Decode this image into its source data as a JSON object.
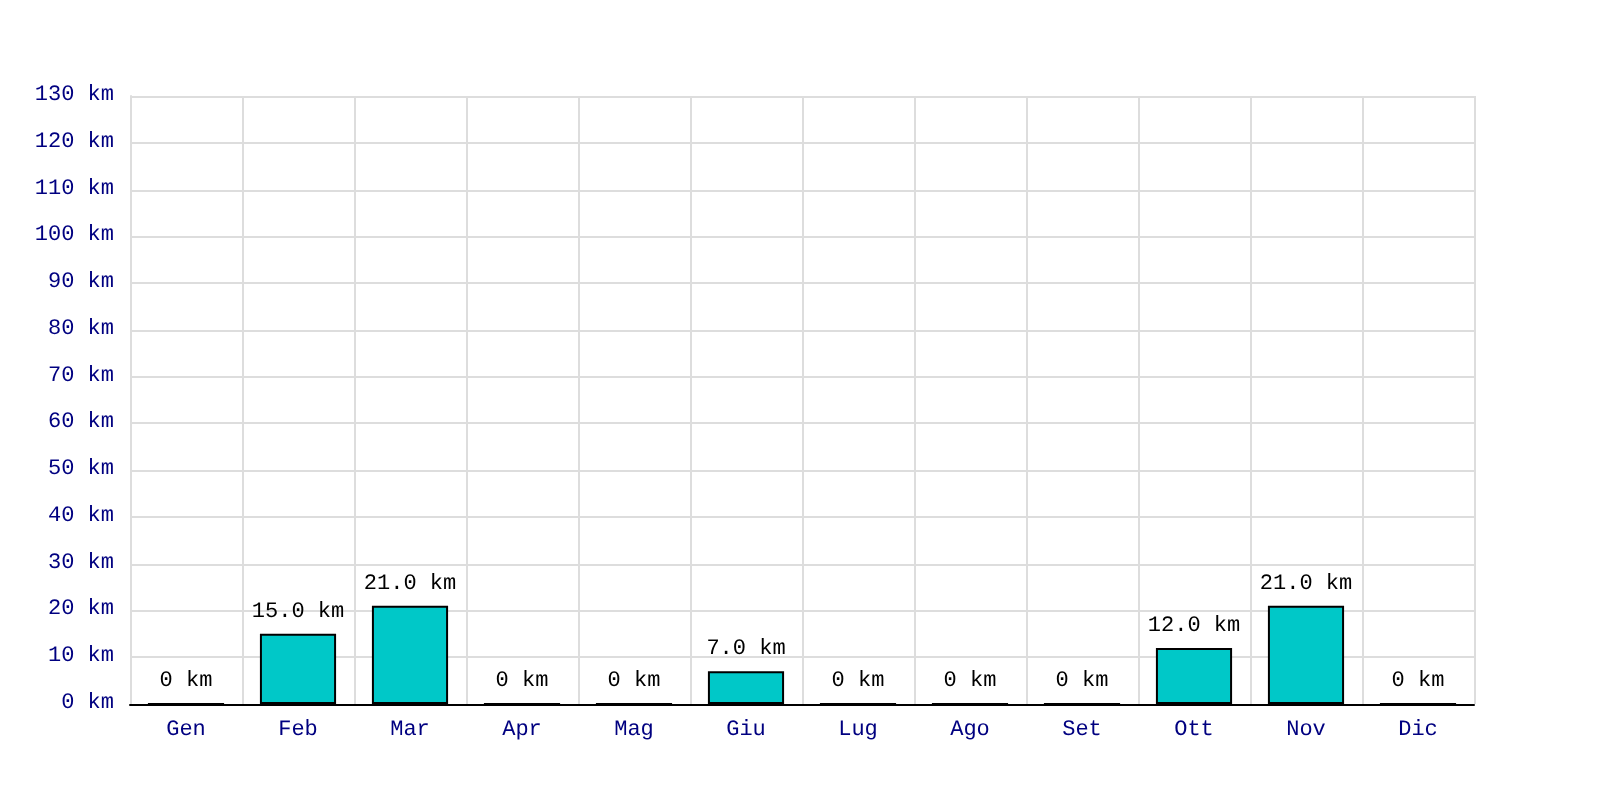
{
  "chart_data": {
    "type": "bar",
    "categories": [
      "Gen",
      "Feb",
      "Mar",
      "Apr",
      "Mag",
      "Giu",
      "Lug",
      "Ago",
      "Set",
      "Ott",
      "Nov",
      "Dic"
    ],
    "values": [
      0,
      15,
      21,
      0,
      0,
      7,
      0,
      0,
      0,
      12,
      21,
      0
    ],
    "value_labels": [
      "0 km",
      "15.0 km",
      "21.0 km",
      "0 km",
      "0 km",
      "7.0 km",
      "0 km",
      "0 km",
      "0 km",
      "12.0 km",
      "21.0 km",
      "0 km"
    ],
    "color": "#00c8c8",
    "ylim": [
      0,
      130
    ],
    "yticks": [
      {
        "value": 0,
        "label": "0 km"
      },
      {
        "value": 10,
        "label": "10 km"
      },
      {
        "value": 20,
        "label": "20 km"
      },
      {
        "value": 30,
        "label": "30 km"
      },
      {
        "value": 40,
        "label": "40 km"
      },
      {
        "value": 50,
        "label": "50 km"
      },
      {
        "value": 60,
        "label": "60 km"
      },
      {
        "value": 70,
        "label": "70 km"
      },
      {
        "value": 80,
        "label": "80 km"
      },
      {
        "value": 90,
        "label": "90 km"
      },
      {
        "value": 100,
        "label": "100 km"
      },
      {
        "value": 110,
        "label": "110 km"
      },
      {
        "value": 120,
        "label": "120 km"
      },
      {
        "value": 130,
        "label": "130 km"
      }
    ],
    "grid": true
  }
}
